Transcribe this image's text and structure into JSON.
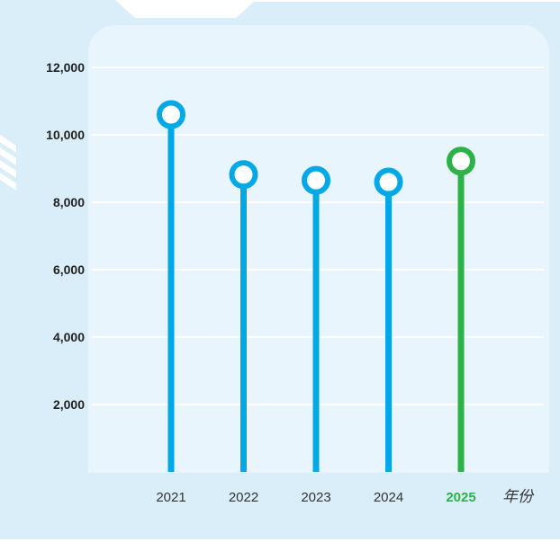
{
  "chart_data": {
    "type": "lollipop",
    "categories": [
      "2021",
      "2022",
      "2023",
      "2024",
      "2025"
    ],
    "values": [
      10600,
      8820,
      8650,
      8600,
      9220
    ],
    "highlight_category": "2025",
    "xlabel": "年份",
    "ylabel": "",
    "ylim": [
      0,
      12000
    ],
    "yticks": [
      2000,
      4000,
      6000,
      8000,
      10000,
      12000
    ],
    "ytick_labels": [
      "2,000",
      "4,000",
      "6,000",
      "8,000",
      "10,000",
      "12,000"
    ],
    "grid": true,
    "legend": "none",
    "colors": {
      "series": "#00a8e6",
      "highlight": "#2db24a",
      "panel_outer": "#d9eef9",
      "panel_inner": "#e8f5fc",
      "grid": "#ffffff"
    }
  }
}
